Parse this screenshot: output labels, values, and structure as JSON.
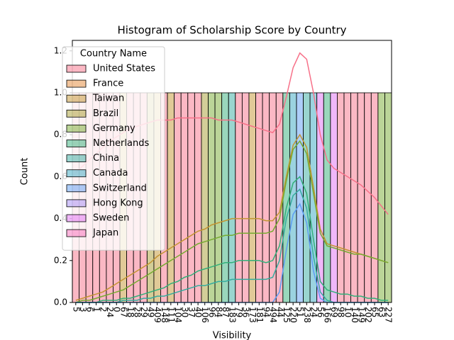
{
  "chart_data": {
    "type": "histogram",
    "title": "Histogram of Scholarship Score by Country",
    "xlabel": "Visibility",
    "ylabel": "Count",
    "categories": [
      "5",
      "3",
      "6",
      "1",
      "2",
      "24",
      "0",
      "67",
      "18",
      "28",
      "29",
      "49",
      "409",
      "148",
      "111",
      "104",
      "30",
      "37",
      "40",
      "106",
      "96",
      "84",
      "87",
      "183",
      "79",
      "36",
      "173",
      "181",
      "94",
      "494",
      "44",
      "125",
      "220",
      "51",
      "238",
      "24",
      "56",
      "166",
      "69",
      "98",
      "10",
      "140",
      "149",
      "202",
      "65",
      "63",
      "227"
    ],
    "values": [
      1,
      1,
      1,
      1,
      1,
      1,
      1,
      1,
      1,
      1,
      1,
      1,
      1,
      1,
      1,
      1,
      1,
      1,
      1,
      1,
      1,
      1,
      1,
      1,
      1,
      1,
      1,
      1,
      1,
      1,
      1,
      1,
      1,
      1,
      1,
      1,
      1,
      1,
      1,
      1,
      1,
      1,
      1,
      1,
      1,
      1,
      1
    ],
    "colors": [
      "#f77189",
      "#f77189",
      "#f77189",
      "#f77189",
      "#f77189",
      "#f77189",
      "#f77189",
      "#c39532",
      "#f77189",
      "#f77189",
      "#f77189",
      "#a79d31",
      "#c39532",
      "#f77189",
      "#c39532",
      "#f77189",
      "#f77189",
      "#f77189",
      "#f77189",
      "#a79d31",
      "#77ab31",
      "#77ab31",
      "#33b07a",
      "#35ac9f",
      "#f77189",
      "#f77189",
      "#c39532",
      "#f77189",
      "#f77189",
      "#f77189",
      "#f77189",
      "#33b07a",
      "#38a7c2",
      "#5d9ef4",
      "#35ac9f",
      "#38a7c2",
      "#e06ff4",
      "#33b07a",
      "#e06ff4",
      "#f77189",
      "#f77189",
      "#f77189",
      "#f77189",
      "#f77189",
      "#f77189",
      "#77ab31",
      "#77ab31"
    ],
    "legend_title": "Country Name",
    "legend": "upper left",
    "legend_entries": [
      {
        "name": "United States",
        "color": "#f77189"
      },
      {
        "name": "France",
        "color": "#e48735"
      },
      {
        "name": "Taiwan",
        "color": "#c39532"
      },
      {
        "name": "Brazil",
        "color": "#a79d31"
      },
      {
        "name": "Germany",
        "color": "#77ab31"
      },
      {
        "name": "Netherlands",
        "color": "#33b07a"
      },
      {
        "name": "China",
        "color": "#35ac9f"
      },
      {
        "name": "Canada",
        "color": "#38a7c2"
      },
      {
        "name": "Switzerland",
        "color": "#5d9ef4"
      },
      {
        "name": "Hong Kong",
        "color": "#a48cf4"
      },
      {
        "name": "Sweden",
        "color": "#e06ff4"
      },
      {
        "name": "Japan",
        "color": "#f66bb9"
      }
    ],
    "kde": [
      {
        "color": "#f77189",
        "values": [
          0.62,
          0.65,
          0.68,
          0.71,
          0.74,
          0.77,
          0.79,
          0.81,
          0.83,
          0.84,
          0.85,
          0.86,
          0.87,
          0.87,
          0.87,
          0.88,
          0.88,
          0.88,
          0.88,
          0.88,
          0.88,
          0.87,
          0.87,
          0.87,
          0.86,
          0.85,
          0.84,
          0.83,
          0.82,
          0.81,
          0.85,
          0.98,
          1.12,
          1.19,
          1.16,
          1.0,
          0.8,
          0.68,
          0.64,
          0.62,
          0.6,
          0.58,
          0.56,
          0.53,
          0.5,
          0.46,
          0.42
        ]
      },
      {
        "color": "#c39532",
        "values": [
          0.01,
          0.02,
          0.03,
          0.04,
          0.05,
          0.07,
          0.09,
          0.11,
          0.13,
          0.15,
          0.17,
          0.19,
          0.22,
          0.24,
          0.26,
          0.28,
          0.3,
          0.32,
          0.34,
          0.35,
          0.37,
          0.38,
          0.39,
          0.4,
          0.4,
          0.4,
          0.4,
          0.4,
          0.39,
          0.39,
          0.43,
          0.6,
          0.75,
          0.8,
          0.74,
          0.55,
          0.35,
          0.28,
          0.27,
          0.26,
          0.25,
          0.24,
          0.23,
          0.22,
          0.21,
          0.2,
          0.19
        ]
      },
      {
        "color": "#77ab31",
        "values": [
          0,
          0.01,
          0.01,
          0.02,
          0.03,
          0.04,
          0.05,
          0.06,
          0.08,
          0.1,
          0.12,
          0.14,
          0.16,
          0.18,
          0.2,
          0.22,
          0.24,
          0.26,
          0.28,
          0.29,
          0.3,
          0.31,
          0.32,
          0.32,
          0.33,
          0.33,
          0.33,
          0.33,
          0.33,
          0.34,
          0.4,
          0.58,
          0.73,
          0.77,
          0.71,
          0.52,
          0.33,
          0.27,
          0.26,
          0.25,
          0.24,
          0.23,
          0.23,
          0.22,
          0.21,
          0.2,
          0.19
        ]
      },
      {
        "color": "#33b07a",
        "values": [
          0,
          0,
          0,
          0,
          0.01,
          0.01,
          0.01,
          0.02,
          0.02,
          0.03,
          0.04,
          0.05,
          0.06,
          0.07,
          0.09,
          0.1,
          0.12,
          0.13,
          0.15,
          0.16,
          0.17,
          0.18,
          0.19,
          0.19,
          0.2,
          0.2,
          0.2,
          0.2,
          0.19,
          0.2,
          0.27,
          0.45,
          0.57,
          0.6,
          0.52,
          0.3,
          0.1,
          0.06,
          0.05,
          0.04,
          0.04,
          0.03,
          0.03,
          0.02,
          0.02,
          0.01,
          0.01
        ]
      },
      {
        "color": "#35ac9f",
        "values": [
          0,
          0,
          0,
          0,
          0,
          0,
          0,
          0.01,
          0.01,
          0.01,
          0.02,
          0.02,
          0.03,
          0.03,
          0.04,
          0.05,
          0.06,
          0.07,
          0.08,
          0.08,
          0.09,
          0.1,
          0.1,
          0.11,
          0.11,
          0.11,
          0.11,
          0.11,
          0.11,
          0.12,
          0.2,
          0.4,
          0.51,
          0.54,
          0.45,
          0.22,
          0.05,
          0.01,
          0,
          0,
          0,
          0,
          0,
          0,
          0,
          0,
          0
        ]
      },
      {
        "color": "#5d9ef4",
        "values": [
          0,
          0,
          0,
          0,
          0,
          0,
          0,
          0,
          0,
          0,
          0,
          0,
          0,
          0,
          0,
          0,
          0,
          0,
          0,
          0,
          0,
          0,
          0,
          0,
          0,
          0,
          0,
          0,
          0,
          0,
          0.05,
          0.25,
          0.42,
          0.47,
          0.38,
          0.15,
          0.02,
          0,
          0,
          0,
          0,
          0,
          0,
          0,
          0,
          0,
          0
        ]
      }
    ],
    "ylim": [
      0,
      1.25
    ],
    "yticks": [
      {
        "value": 0,
        "label": "0.0"
      },
      {
        "value": 0.2,
        "label": "0.2"
      },
      {
        "value": 0.4,
        "label": "0.4"
      },
      {
        "value": 0.6,
        "label": "0.6"
      },
      {
        "value": 0.8,
        "label": "0.8"
      },
      {
        "value": 1,
        "label": "1.0"
      },
      {
        "value": 1.2,
        "label": "1.2"
      }
    ],
    "grid": false
  }
}
